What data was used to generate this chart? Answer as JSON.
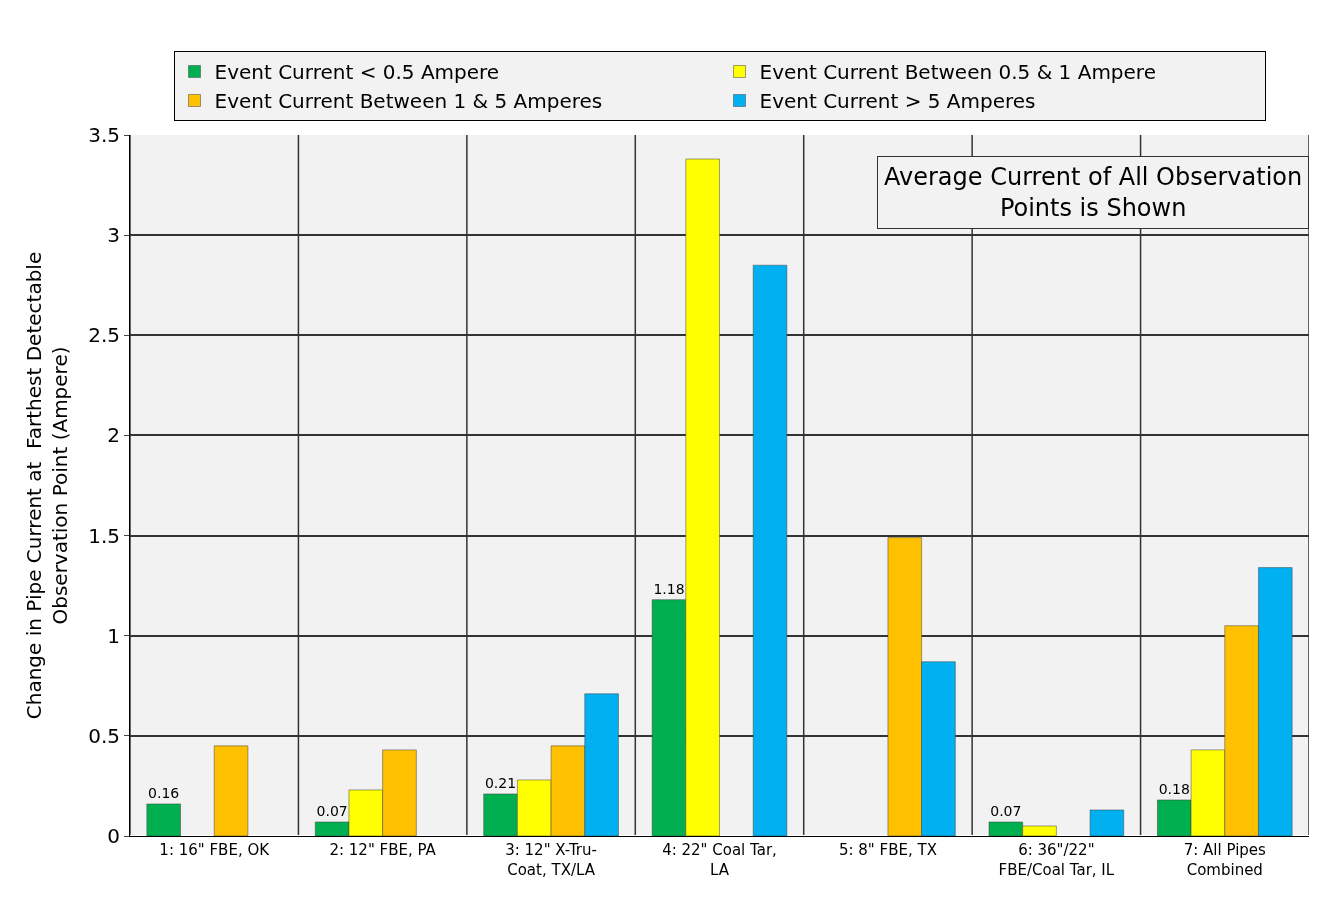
{
  "chart_data": {
    "type": "bar",
    "ylabel": "Change in Pipe Current at  Farthest Detectable\nObservation Point (Ampere)",
    "categories": [
      "1: 16\" FBE, OK",
      "2: 12\" FBE, PA",
      "3: 12\" X-Tru-\nCoat, TX/LA",
      "4: 22\" Coal Tar,\nLA",
      "5: 8\" FBE, TX",
      "6: 36\"/22\"\nFBE/Coal Tar, IL",
      "7: All Pipes\nCombined"
    ],
    "series": [
      {
        "name": "Event Current < 0.5 Ampere",
        "color": "#00b050",
        "values": [
          0.16,
          0.07,
          0.21,
          1.18,
          null,
          0.07,
          0.18
        ],
        "value_labels": [
          "0.16",
          "0.07",
          "0.21",
          "1.18",
          null,
          "0.07",
          "0.18"
        ]
      },
      {
        "name": "Event Current Between 0.5 & 1 Ampere",
        "color": "#ffff00",
        "values": [
          null,
          0.23,
          0.28,
          3.38,
          null,
          0.05,
          0.43
        ]
      },
      {
        "name": "Event Current Between 1 & 5 Amperes",
        "color": "#ffc000",
        "values": [
          0.45,
          0.43,
          0.45,
          null,
          1.49,
          null,
          1.05
        ]
      },
      {
        "name": "Event Current > 5 Amperes",
        "color": "#00b0f0",
        "values": [
          null,
          null,
          0.71,
          2.85,
          0.87,
          0.13,
          1.34
        ]
      }
    ],
    "ylim": [
      0,
      3.5
    ],
    "yticks": [
      0,
      0.5,
      1,
      1.5,
      2,
      2.5,
      3,
      3.5
    ],
    "grid": true,
    "legend": "top",
    "annotations": [
      "Average Current of All Observation\nPoints is Shown"
    ]
  }
}
